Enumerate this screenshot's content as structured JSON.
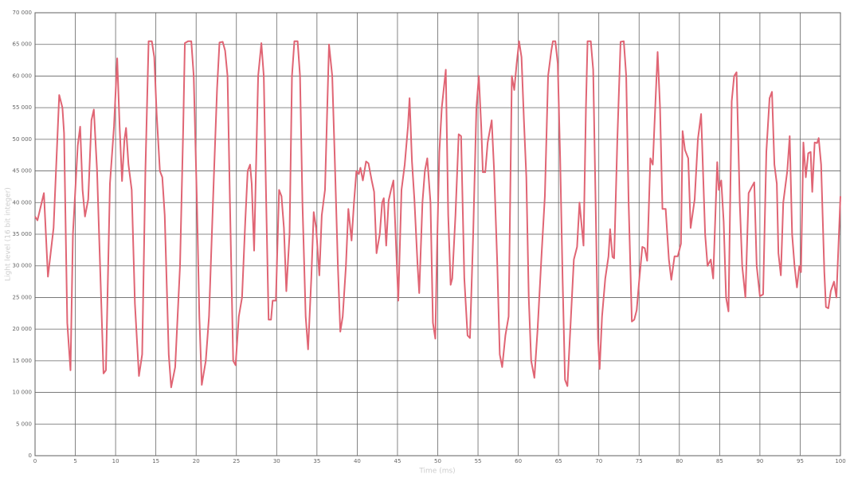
{
  "chart_data": {
    "type": "line",
    "x_label": "Time (ms)",
    "y_label": "Light level (16 bit integer)",
    "xlim": [
      0,
      100
    ],
    "ylim": [
      0,
      70000
    ],
    "xticks": [
      0,
      5,
      10,
      15,
      20,
      25,
      30,
      35,
      40,
      45,
      50,
      55,
      60,
      65,
      70,
      75,
      80,
      85,
      90,
      95,
      100
    ],
    "yticks": [
      {
        "value": 0,
        "label": "0"
      },
      {
        "value": 5000,
        "label": "5 000"
      },
      {
        "value": 10000,
        "label": "10 000"
      },
      {
        "value": 15000,
        "label": "15 000"
      },
      {
        "value": 20000,
        "label": "20 000"
      },
      {
        "value": 25000,
        "label": "25 000"
      },
      {
        "value": 30000,
        "label": "30 000"
      },
      {
        "value": 35000,
        "label": "35 000"
      },
      {
        "value": 40000,
        "label": "40 000"
      },
      {
        "value": 45000,
        "label": "45 000"
      },
      {
        "value": 50000,
        "label": "50 000"
      },
      {
        "value": 55000,
        "label": "55 000"
      },
      {
        "value": 60000,
        "label": "60 000"
      },
      {
        "value": 65000,
        "label": "65 000"
      },
      {
        "value": 70000,
        "label": "70 000"
      }
    ],
    "grid": true,
    "x": [
      0,
      0.3,
      1.1,
      1.6,
      2.3,
      3.0,
      3.4,
      3.6,
      4.0,
      4.4,
      4.7,
      5.3,
      5.6,
      5.9,
      6.2,
      6.6,
      7.0,
      7.3,
      7.7,
      8.2,
      8.5,
      8.8,
      9.3,
      9.8,
      10.2,
      10.5,
      10.8,
      11.1,
      11.3,
      11.6,
      12.0,
      12.4,
      12.9,
      13.3,
      13.7,
      14.1,
      14.5,
      14.8,
      15.1,
      15.5,
      15.8,
      16.1,
      16.6,
      16.9,
      17.4,
      18.0,
      18.4,
      18.6,
      19.0,
      19.4,
      19.7,
      20.1,
      20.4,
      20.7,
      21.2,
      21.6,
      22.2,
      22.6,
      22.9,
      23.3,
      23.6,
      23.9,
      24.2,
      24.6,
      24.9,
      25.3,
      25.7,
      26.1,
      26.4,
      26.7,
      26.9,
      27.2,
      27.7,
      28.1,
      28.4,
      28.7,
      29.0,
      29.3,
      29.5,
      29.9,
      30.3,
      30.6,
      30.9,
      31.2,
      31.6,
      31.9,
      32.2,
      32.6,
      32.9,
      33.2,
      33.6,
      33.9,
      34.3,
      34.6,
      34.9,
      35.3,
      35.6,
      36.0,
      36.5,
      36.9,
      37.2,
      37.6,
      37.9,
      38.2,
      38.6,
      38.9,
      39.3,
      39.6,
      39.9,
      40.2,
      40.4,
      40.7,
      41.1,
      41.4,
      41.8,
      42.1,
      42.4,
      42.8,
      43.1,
      43.3,
      43.6,
      43.9,
      44.2,
      44.5,
      45.1,
      45.5,
      45.9,
      46.3,
      46.5,
      46.8,
      47.1,
      47.5,
      47.7,
      48.1,
      48.4,
      48.7,
      49.1,
      49.4,
      49.7,
      49.9,
      50.2,
      50.5,
      51.0,
      51.3,
      51.6,
      51.8,
      52.2,
      52.6,
      52.9,
      53.3,
      53.7,
      54.0,
      54.4,
      54.8,
      55.1,
      55.4,
      55.6,
      55.9,
      56.2,
      56.7,
      57.0,
      57.4,
      57.7,
      58.0,
      58.4,
      58.8,
      59.2,
      59.5,
      59.8,
      60.1,
      60.4,
      60.7,
      61.0,
      61.3,
      61.6,
      62.0,
      62.4,
      62.9,
      63.3,
      63.7,
      64.1,
      64.3,
      64.6,
      64.9,
      65.2,
      65.5,
      65.8,
      66.1,
      66.5,
      66.9,
      67.3,
      67.6,
      68.1,
      68.4,
      68.6,
      69.0,
      69.3,
      69.6,
      69.9,
      70.1,
      70.4,
      70.8,
      71.2,
      71.4,
      71.7,
      71.9,
      72.3,
      72.7,
      73.1,
      73.4,
      73.7,
      74.1,
      74.4,
      74.7,
      75.0,
      75.4,
      75.7,
      76.0,
      76.4,
      76.7,
      76.9,
      77.3,
      77.6,
      77.9,
      78.3,
      78.7,
      79.0,
      79.4,
      79.8,
      80.2,
      80.4,
      80.7,
      81.1,
      81.4,
      81.9,
      82.3,
      82.7,
      83.2,
      83.5,
      83.9,
      84.2,
      84.7,
      84.9,
      85.2,
      85.5,
      85.8,
      86.1,
      86.5,
      86.8,
      87.1,
      87.5,
      87.8,
      88.2,
      88.6,
      89.0,
      89.3,
      89.6,
      90.0,
      90.4,
      90.8,
      91.2,
      91.5,
      91.8,
      92.1,
      92.3,
      92.6,
      92.9,
      93.4,
      93.7,
      94.0,
      94.3,
      94.6,
      94.9,
      95.1,
      95.4,
      95.7,
      96.0,
      96.3,
      96.5,
      96.8,
      97.1,
      97.3,
      97.6,
      98.0,
      98.2,
      98.5,
      98.8,
      99.2,
      99.5,
      100
    ],
    "series": [
      {
        "color": "#e06574",
        "values": [
          37800,
          37200,
          41500,
          28300,
          36000,
          57000,
          55000,
          51000,
          21000,
          13500,
          35000,
          49000,
          52000,
          42000,
          37800,
          40500,
          53000,
          54700,
          45000,
          25000,
          13000,
          13500,
          43000,
          52000,
          62800,
          52000,
          43400,
          50000,
          51800,
          46000,
          42000,
          24000,
          12600,
          16000,
          45000,
          65500,
          65500,
          63000,
          54000,
          45000,
          44000,
          38000,
          16000,
          10800,
          14000,
          30000,
          52000,
          65200,
          65500,
          65500,
          60000,
          40000,
          22000,
          11200,
          15000,
          22000,
          44000,
          58000,
          65300,
          65400,
          64000,
          60000,
          40000,
          15000,
          14300,
          22000,
          25000,
          37000,
          45000,
          46000,
          43000,
          32400,
          60000,
          65200,
          60000,
          40000,
          21500,
          21500,
          24500,
          24500,
          42000,
          41000,
          36000,
          26000,
          35000,
          60000,
          65500,
          65500,
          60000,
          40000,
          22000,
          16800,
          28000,
          38500,
          36000,
          28500,
          38000,
          42000,
          65000,
          60000,
          47500,
          30000,
          19600,
          22000,
          30000,
          39000,
          34000,
          40000,
          45000,
          44500,
          45500,
          43500,
          46500,
          46200,
          43500,
          41700,
          32000,
          35000,
          40000,
          40700,
          33200,
          40300,
          42000,
          43500,
          24500,
          42000,
          46000,
          52000,
          56500,
          46500,
          40500,
          30000,
          25700,
          40000,
          45000,
          47000,
          40000,
          21000,
          18500,
          32000,
          48000,
          55000,
          61000,
          38000,
          27000,
          28000,
          38000,
          50800,
          50500,
          28000,
          19000,
          18600,
          35000,
          55000,
          60000,
          52000,
          44800,
          44800,
          49500,
          53000,
          45000,
          30000,
          16000,
          14000,
          19000,
          22000,
          60000,
          57800,
          62000,
          65500,
          63000,
          53000,
          44000,
          25000,
          15000,
          12300,
          20000,
          32000,
          41000,
          60000,
          64000,
          65500,
          65500,
          62000,
          47000,
          28000,
          12000,
          11000,
          21000,
          31000,
          33000,
          40000,
          33200,
          55000,
          65500,
          65500,
          61000,
          40000,
          18500,
          13700,
          22000,
          28000,
          31500,
          35800,
          31400,
          31200,
          50000,
          65400,
          65500,
          60000,
          40000,
          21200,
          21500,
          23000,
          27500,
          33000,
          32800,
          30800,
          47000,
          46000,
          52000,
          63800,
          55000,
          39000,
          39000,
          31000,
          27800,
          31500,
          31500,
          33500,
          51300,
          48300,
          47000,
          36000,
          40500,
          50000,
          54000,
          35000,
          30000,
          31000,
          28000,
          46400,
          42000,
          43500,
          37000,
          25000,
          22800,
          56000,
          60000,
          60600,
          40000,
          30000,
          25000,
          41500,
          42500,
          43200,
          30000,
          25200,
          25500,
          48000,
          56500,
          57500,
          46000,
          43000,
          32000,
          28500,
          40000,
          45000,
          50500,
          35000,
          30000,
          26600,
          30000,
          29000,
          49500,
          44000,
          47800,
          48000,
          41700,
          49500,
          49400,
          50200,
          46000,
          29000,
          23500,
          23300,
          26000,
          27500,
          25000,
          41000
        ]
      }
    ]
  }
}
